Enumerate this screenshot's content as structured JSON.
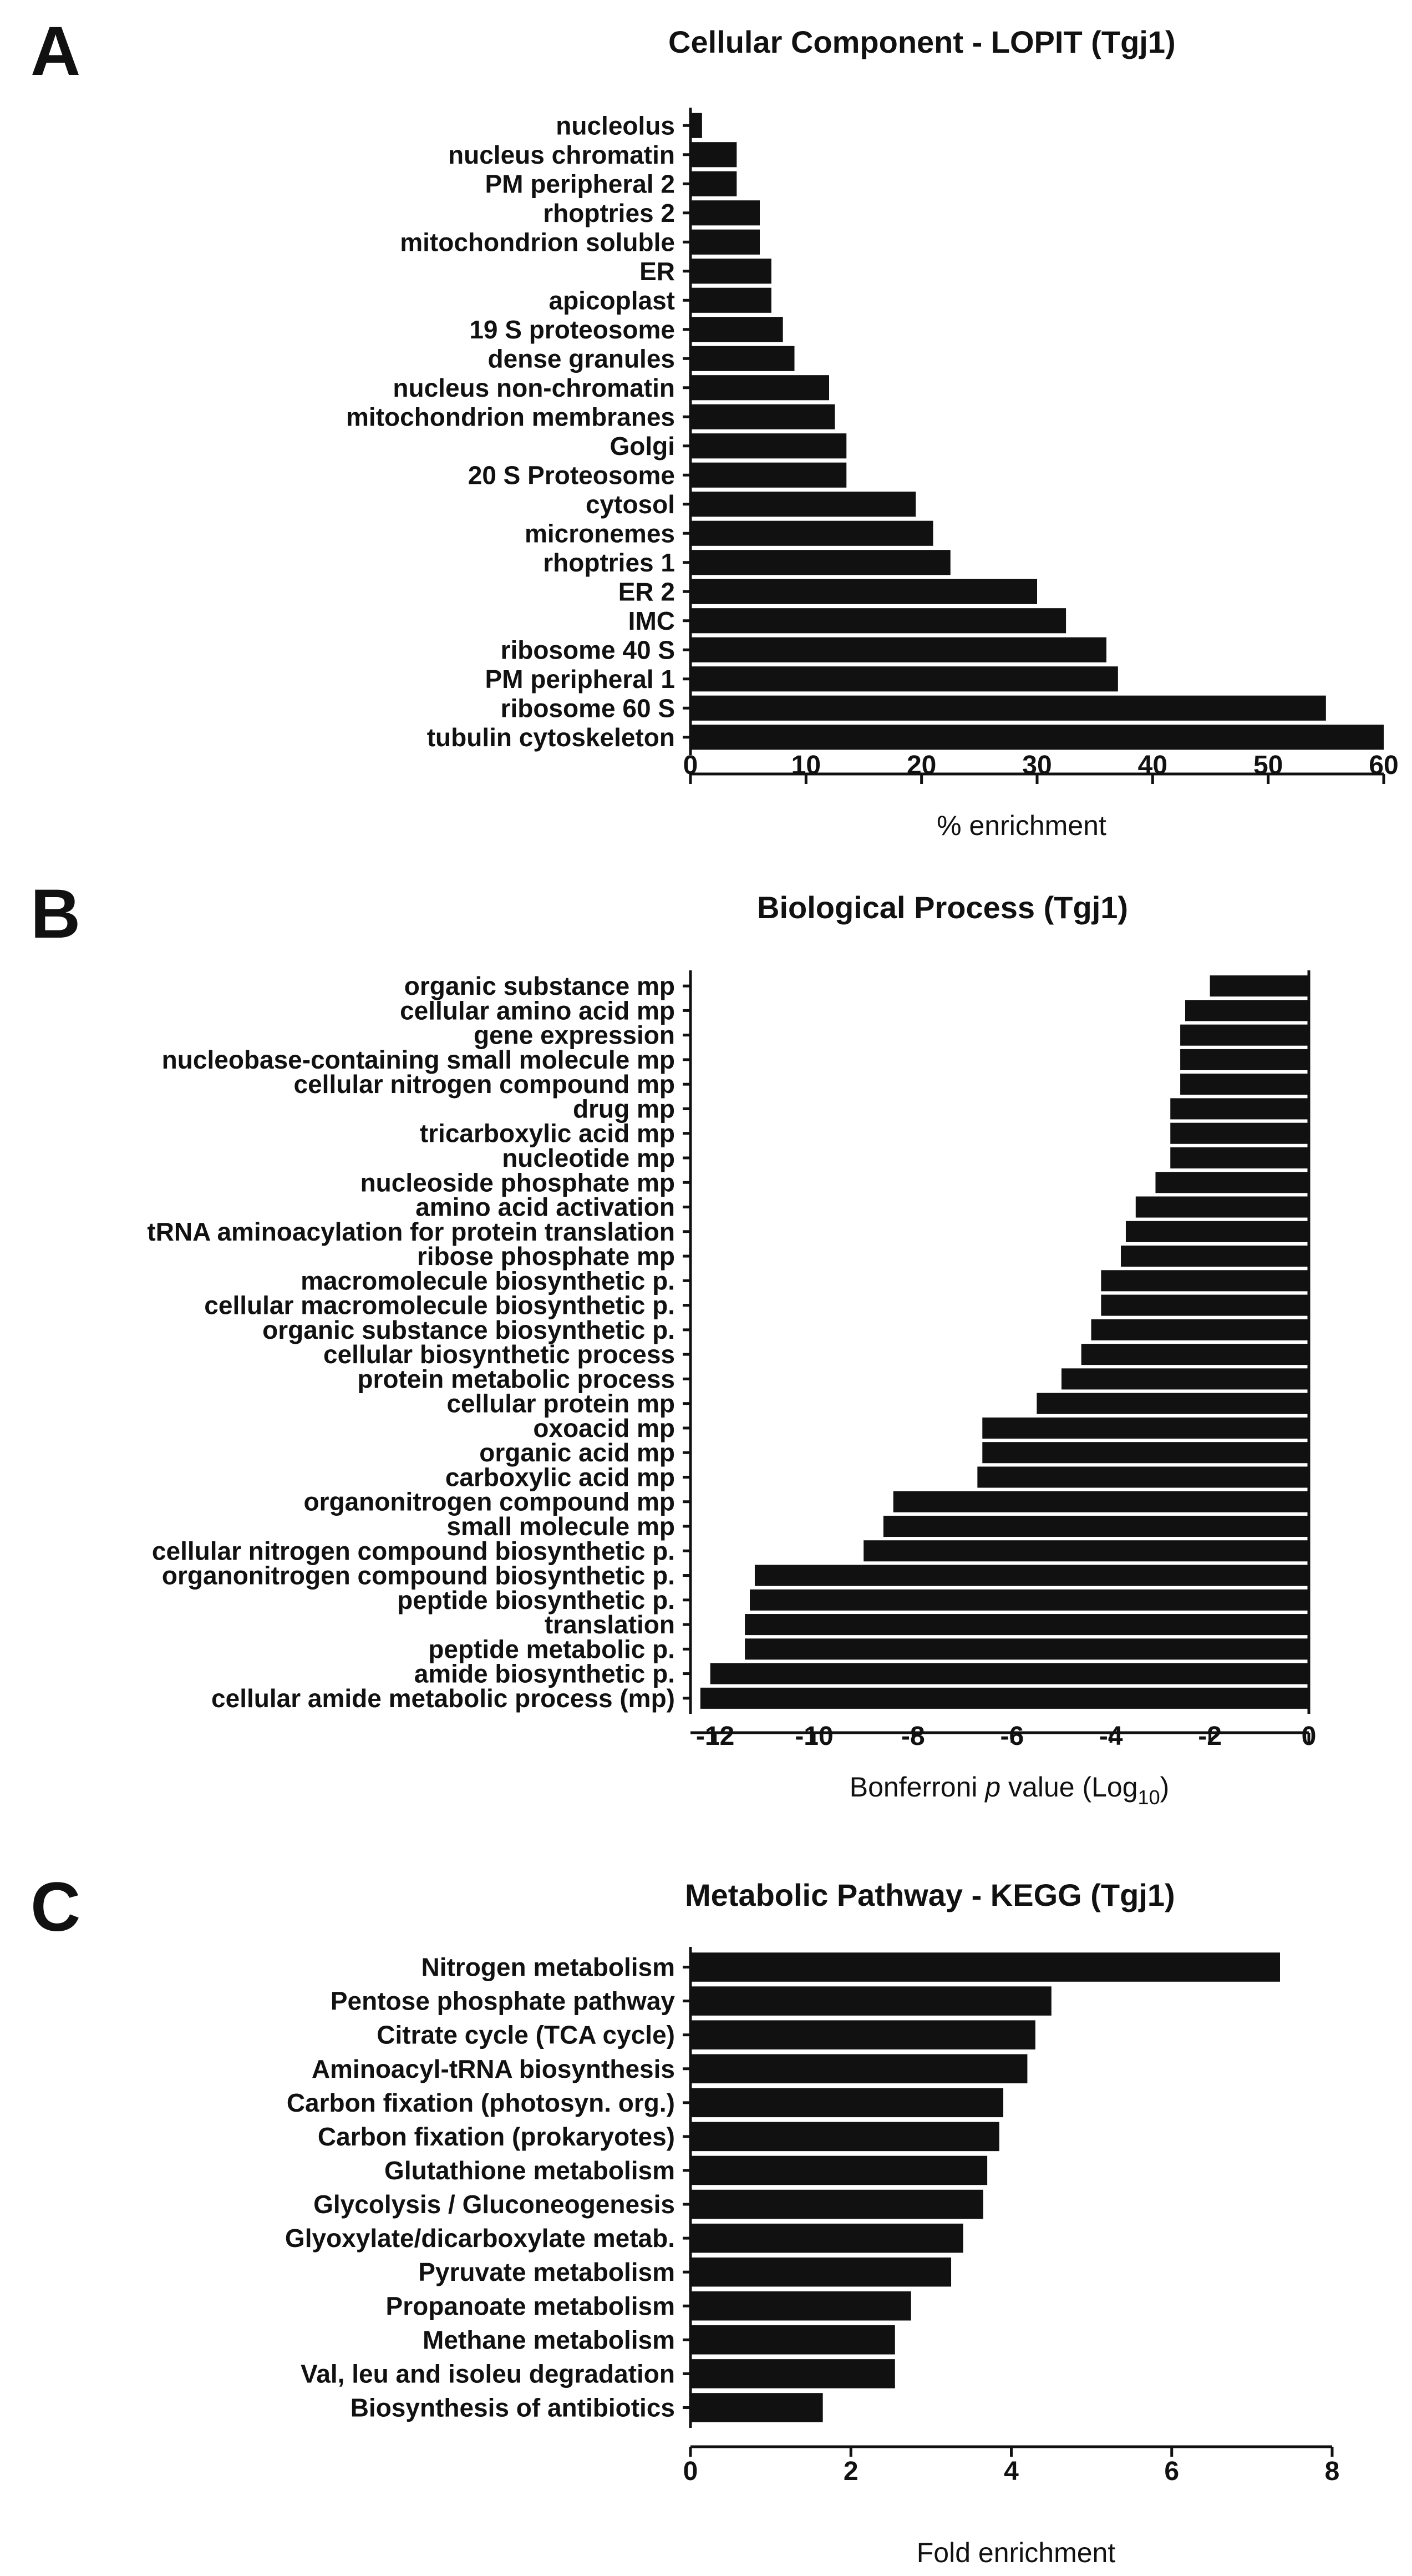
{
  "figure": {
    "colors": {
      "bar": "#111111",
      "text": "#111111",
      "background": "#ffffff"
    }
  },
  "chart_data": [
    {
      "panel": "A",
      "type": "bar",
      "orientation": "horizontal",
      "title": "Cellular Component - LOPIT (Tgj1)",
      "xlabel": "% enrichment",
      "ylabel": "",
      "xlim": [
        0,
        60
      ],
      "xticks": [
        0,
        10,
        20,
        30,
        40,
        50,
        60
      ],
      "categories": [
        "nucleolus",
        "nucleus chromatin",
        "PM peripheral 2",
        "rhoptries 2",
        "mitochondrion soluble",
        "ER",
        "apicoplast",
        "19 S proteosome",
        "dense granules",
        "nucleus non-chromatin",
        "mitochondrion membranes",
        "Golgi",
        "20 S Proteosome",
        "cytosol",
        "micronemes",
        "rhoptries 1",
        "ER 2",
        "IMC",
        "ribosome 40 S",
        "PM peripheral 1",
        "ribosome 60 S",
        "tubulin cytoskeleton"
      ],
      "values": [
        1,
        4,
        4,
        6,
        6,
        7,
        7,
        8,
        9,
        12,
        12.5,
        13.5,
        13.5,
        19.5,
        21,
        22.5,
        30,
        32.5,
        36,
        37,
        55,
        60
      ]
    },
    {
      "panel": "B",
      "type": "bar",
      "orientation": "horizontal",
      "title": "Biological Process  (Tgj1)",
      "xlabel_main": "Bonferroni ",
      "xlabel_p": "p",
      "xlabel_rest": " value (Log",
      "xlabel_sub": "10",
      "xlabel_close": ")",
      "ylabel": "",
      "xlim": [
        -12.5,
        0
      ],
      "xticks": [
        -12,
        -10,
        -8,
        -6,
        -4,
        -2,
        0
      ],
      "categories": [
        "organic substance mp",
        "cellular amino acid mp",
        "gene expression",
        "nucleobase-containing small molecule mp",
        "cellular nitrogen compound mp",
        "drug mp",
        "tricarboxylic acid mp",
        "nucleotide mp",
        "nucleoside phosphate mp",
        "amino acid activation",
        "tRNA aminoacylation for protein translation",
        "ribose phosphate mp",
        "macromolecule biosynthetic p.",
        "cellular macromolecule biosynthetic p.",
        "organic substance biosynthetic p.",
        "cellular biosynthetic process",
        "protein metabolic process",
        "cellular protein mp",
        "oxoacid mp",
        "organic acid mp",
        "carboxylic acid mp",
        "organonitrogen compound mp",
        "small molecule mp",
        "cellular nitrogen compound biosynthetic p.",
        "organonitrogen compound biosynthetic p.",
        "peptide biosynthetic p.",
        "translation",
        "peptide metabolic p.",
        "amide biosynthetic p.",
        "cellular amide metabolic process (mp)"
      ],
      "values": [
        -2.0,
        -2.5,
        -2.6,
        -2.6,
        -2.6,
        -2.8,
        -2.8,
        -2.8,
        -3.1,
        -3.5,
        -3.7,
        -3.8,
        -4.2,
        -4.2,
        -4.4,
        -4.6,
        -5.0,
        -5.5,
        -6.6,
        -6.6,
        -6.7,
        -8.4,
        -8.6,
        -9.0,
        -11.2,
        -11.3,
        -11.4,
        -11.4,
        -12.1,
        -12.3
      ]
    },
    {
      "panel": "C",
      "type": "bar",
      "orientation": "horizontal",
      "title": "Metabolic Pathway - KEGG (Tgj1)",
      "xlabel": "Fold enrichment",
      "ylabel": "",
      "xlim": [
        0,
        8
      ],
      "xticks": [
        0,
        2,
        4,
        6,
        8
      ],
      "categories": [
        "Nitrogen metabolism",
        "Pentose phosphate pathway",
        "Citrate cycle (TCA cycle)",
        "Aminoacyl-tRNA biosynthesis",
        "Carbon fixation (photosyn. org.)",
        "Carbon fixation (prokaryotes)",
        "Glutathione metabolism",
        "Glycolysis / Gluconeogenesis",
        "Glyoxylate/dicarboxylate metab.",
        "Pyruvate metabolism",
        "Propanoate metabolism",
        "Methane metabolism",
        "Val, leu and isoleu degradation",
        "Biosynthesis of antibiotics"
      ],
      "values": [
        7.35,
        4.5,
        4.3,
        4.2,
        3.9,
        3.85,
        3.7,
        3.65,
        3.4,
        3.25,
        2.75,
        2.55,
        2.55,
        1.65
      ]
    }
  ]
}
